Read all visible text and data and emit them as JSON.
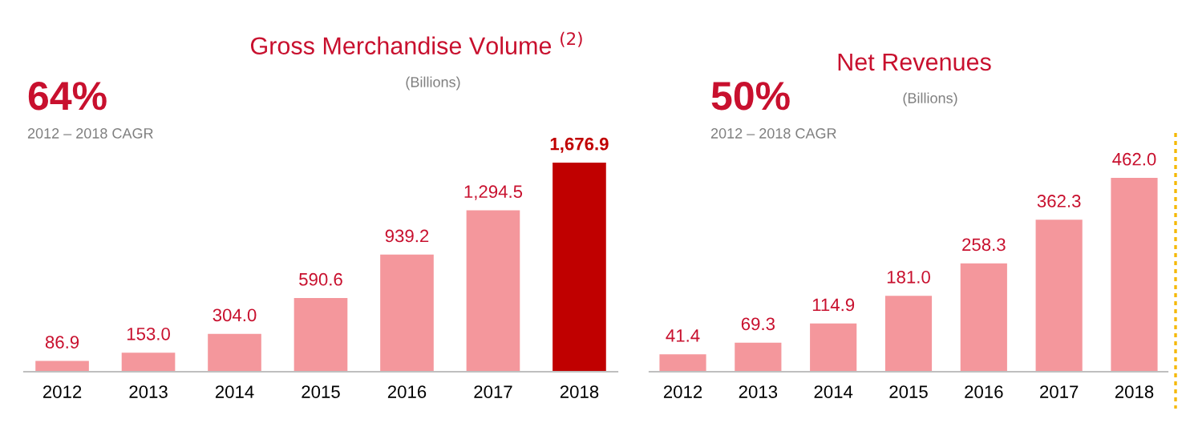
{
  "chart_data": [
    {
      "type": "bar",
      "title": "Gross Merchandise Volume $^{(2)}$",
      "subtitle": "(Billions)",
      "annotations": [
        "64%",
        "2012 – 2018 CAGR"
      ],
      "categories": [
        "2012",
        "2013",
        "2014",
        "2015",
        "2016",
        "2017",
        "2018"
      ],
      "values": [
        86.9,
        153.0,
        304.0,
        590.6,
        939.2,
        1294.5,
        1676.9
      ],
      "colors": [
        "#f4979c",
        "#f4979c",
        "#f4979c",
        "#f4979c",
        "#f4979c",
        "#f4979c",
        "#c00000"
      ],
      "value_labels": [
        "86.9",
        "153.0",
        "304.0",
        "590.6",
        "939.2",
        "1,294.5",
        "1,676.9"
      ],
      "grid": false,
      "legend": false
    },
    {
      "type": "bar",
      "title": "Net Revenues",
      "subtitle": "(Billions)",
      "annotations": [
        "50%",
        "2012 – 2018 CAGR"
      ],
      "categories": [
        "2012",
        "2013",
        "2014",
        "2015",
        "2016",
        "2017",
        "2018"
      ],
      "values": [
        41.4,
        69.3,
        114.9,
        181.0,
        258.3,
        362.3,
        462.0
      ],
      "colors": [
        "#f4979c",
        "#f4979c",
        "#f4979c",
        "#f4979c",
        "#f4979c",
        "#f4979c",
        "#f4979c"
      ],
      "value_labels": [
        "41.4",
        "69.3",
        "114.9",
        "181.0",
        "258.3",
        "362.3",
        "462.0"
      ],
      "grid": false,
      "legend": false
    }
  ]
}
